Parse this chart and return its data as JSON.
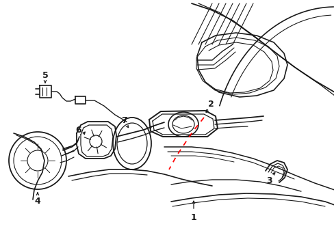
{
  "bg_color": "#ffffff",
  "line_color": "#1a1a1a",
  "red_color": "#ff0000",
  "fig_w": 4.89,
  "fig_h": 3.6,
  "dpi": 100
}
